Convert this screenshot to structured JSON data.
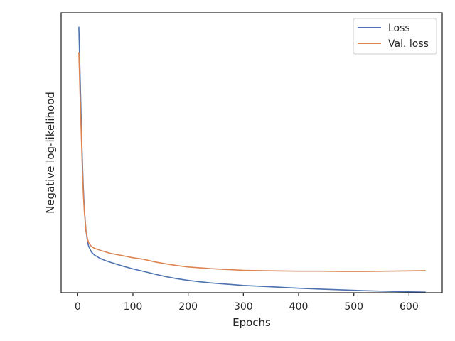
{
  "chart_data": {
    "type": "line",
    "xlabel": "Epochs",
    "ylabel": "Negative log-likelihood",
    "xlim": [
      -30,
      660
    ],
    "ylim": [
      0,
      100
    ],
    "xticks": [
      0,
      100,
      200,
      300,
      400,
      500,
      600
    ],
    "yticks_labeled": false,
    "grid": false,
    "legend": "top-right",
    "series": [
      {
        "name": "Loss",
        "color": "#4c72b0",
        "x": [
          2,
          5,
          8,
          10,
          12,
          15,
          18,
          20,
          25,
          30,
          40,
          50,
          60,
          80,
          100,
          120,
          140,
          160,
          180,
          200,
          220,
          240,
          260,
          280,
          300,
          330,
          360,
          400,
          440,
          480,
          520,
          560,
          600,
          630
        ],
        "y": [
          95,
          72,
          50,
          38,
          30,
          22,
          18,
          16.5,
          14.5,
          13.5,
          12.3,
          11.5,
          10.8,
          9.6,
          8.5,
          7.6,
          6.6,
          5.7,
          5.0,
          4.4,
          3.9,
          3.5,
          3.2,
          2.9,
          2.6,
          2.3,
          2.0,
          1.6,
          1.3,
          1.0,
          0.7,
          0.5,
          0.3,
          0.2
        ]
      },
      {
        "name": "Val. loss",
        "color": "#dd8452",
        "x": [
          2,
          5,
          8,
          10,
          12,
          15,
          18,
          20,
          25,
          30,
          40,
          50,
          60,
          80,
          100,
          120,
          140,
          160,
          180,
          200,
          220,
          240,
          260,
          280,
          300,
          330,
          360,
          400,
          440,
          480,
          520,
          560,
          600,
          630
        ],
        "y": [
          86,
          66,
          47,
          36,
          29,
          22,
          19,
          17.8,
          16.5,
          15.9,
          15.2,
          14.6,
          14.0,
          13.3,
          12.5,
          11.9,
          11.0,
          10.3,
          9.7,
          9.2,
          8.9,
          8.6,
          8.4,
          8.2,
          8.0,
          7.9,
          7.8,
          7.7,
          7.7,
          7.6,
          7.6,
          7.7,
          7.8,
          7.9
        ]
      }
    ]
  }
}
